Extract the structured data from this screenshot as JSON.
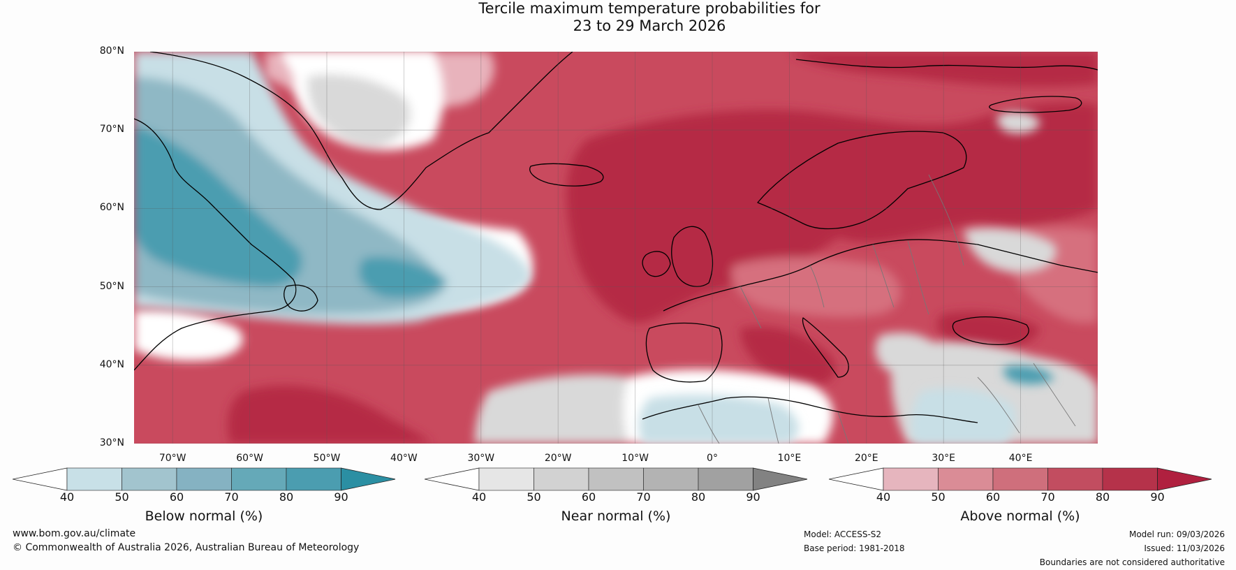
{
  "title": {
    "line1": "Tercile maximum temperature probabilities for",
    "line2": "23 to 29 March 2026"
  },
  "map": {
    "latitude_labels": [
      "80°N",
      "70°N",
      "60°N",
      "50°N",
      "40°N",
      "30°N"
    ],
    "longitude_labels": [
      "70°W",
      "60°W",
      "50°W",
      "40°W",
      "30°W",
      "20°W",
      "10°W",
      "0°",
      "10°E",
      "20°E",
      "30°E",
      "40°E"
    ],
    "extent": {
      "lon": [
        -75,
        50
      ],
      "lat": [
        30,
        80
      ]
    },
    "colors": {
      "ocean_base": "#c94a5e",
      "above_strong": "#b52a44",
      "above_mid": "#d6707e",
      "above_light": "#e8b3bc",
      "near": "#d9d9d9",
      "neutral": "#ffffff",
      "below_light": "#c8dfe6",
      "below_mid": "#8fb8c5",
      "below_strong": "#4b9db0",
      "coast": "#000000",
      "border": "#777777"
    }
  },
  "colorbars": [
    {
      "label": "Below normal (%)",
      "ticks": [
        "40",
        "50",
        "60",
        "70",
        "80",
        "90"
      ],
      "colors": [
        "#ffffff",
        "#c8e0e7",
        "#a2c4ce",
        "#85b2c2",
        "#65a9b8",
        "#4b9db0",
        "#2b8fa3"
      ]
    },
    {
      "label": "Near normal (%)",
      "ticks": [
        "40",
        "50",
        "60",
        "70",
        "80",
        "90"
      ],
      "colors": [
        "#ffffff",
        "#e6e6e6",
        "#d2d2d2",
        "#c1c1c1",
        "#b3b3b3",
        "#a1a1a1",
        "#828282"
      ]
    },
    {
      "label": "Above normal (%)",
      "ticks": [
        "40",
        "50",
        "60",
        "70",
        "80",
        "90"
      ],
      "colors": [
        "#ffffff",
        "#e6b5be",
        "#da8c96",
        "#cf6f7c",
        "#c24d60",
        "#b5324a",
        "#b0203f"
      ]
    }
  ],
  "footer": {
    "website": "www.bom.gov.au/climate",
    "copyright": "© Commonwealth of Australia 2026, Australian Bureau of Meteorology",
    "model": "Model: ACCESS-S2",
    "base_period": "Base period: 1981-2018",
    "model_run": "Model run: 09/03/2026",
    "issued": "Issued: 11/03/2026",
    "disclaimer": "Boundaries are not considered authoritative"
  }
}
